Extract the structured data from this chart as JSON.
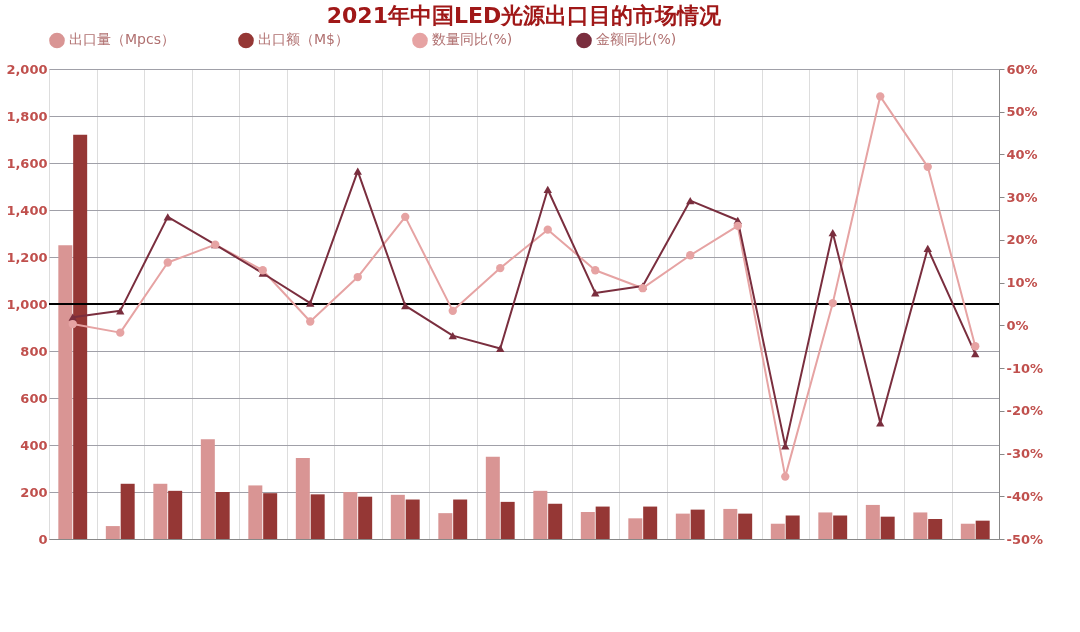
{
  "chart_data": {
    "type": "bar",
    "title": "2021年中国LED光源出口目的市场情况",
    "categories": [
      null,
      null,
      null,
      null,
      null,
      null,
      null,
      null,
      null,
      null,
      null,
      null,
      null,
      null,
      null,
      null,
      null,
      null,
      null,
      null
    ],
    "series": [
      {
        "name": "出口量（Mpcs）",
        "color": "#d99594",
        "values": [
          1250,
          55,
          235,
          425,
          228,
          345,
          200,
          188,
          110,
          350,
          205,
          115,
          88,
          108,
          128,
          65,
          113,
          145,
          113,
          65
        ]
      },
      {
        "name": "出口额（M$）",
        "color": "#953735",
        "values": [
          1720,
          235,
          205,
          200,
          195,
          190,
          180,
          168,
          168,
          158,
          150,
          138,
          138,
          125,
          108,
          100,
          100,
          95,
          85,
          78
        ]
      },
      {
        "name": "数量同比(%)",
        "type": "line",
        "axis": "y2",
        "marker": "circle",
        "color": "#e6a3a3",
        "values": [
          0.3,
          -1.7,
          14.7,
          18.9,
          12.9,
          0.9,
          11.3,
          25.4,
          3.4,
          13.4,
          22.4,
          12.9,
          8.7,
          16.4,
          23.3,
          -35.4,
          5.2,
          53.6,
          37.1,
          -4.9
        ]
      },
      {
        "name": "金额同比(%)",
        "type": "line",
        "axis": "y2",
        "marker": "triangle",
        "color": "#7a2e3e",
        "values": [
          1.9,
          3.4,
          25.4,
          18.9,
          12.2,
          5.2,
          36.1,
          4.6,
          -2.4,
          -5.4,
          31.8,
          7.6,
          9.2,
          29.2,
          24.6,
          -28.2,
          21.7,
          -22.8,
          18.0,
          -6.6
        ]
      }
    ],
    "ylim": [
      0,
      2000
    ],
    "yticks": [
      {
        "value": 0,
        "label": "0"
      },
      {
        "value": 200,
        "label": "200"
      },
      {
        "value": 400,
        "label": "400"
      },
      {
        "value": 600,
        "label": "600"
      },
      {
        "value": 800,
        "label": "800"
      },
      {
        "value": 1000,
        "label": "1,000"
      },
      {
        "value": 1200,
        "label": "1,200"
      },
      {
        "value": 1400,
        "label": "1,400"
      },
      {
        "value": 1600,
        "label": "1,600"
      },
      {
        "value": 1800,
        "label": "1,800"
      },
      {
        "value": 2000,
        "label": "2,000"
      }
    ],
    "y2lim": [
      -50,
      60
    ],
    "y2ticks": [
      {
        "value": -50,
        "label": "-50%"
      },
      {
        "value": -40,
        "label": "-40%"
      },
      {
        "value": -30,
        "label": "-30%"
      },
      {
        "value": -20,
        "label": "-20%"
      },
      {
        "value": -10,
        "label": "-10%"
      },
      {
        "value": 0,
        "label": "0%"
      },
      {
        "value": 10,
        "label": "10%"
      },
      {
        "value": 20,
        "label": "20%"
      },
      {
        "value": 30,
        "label": "30%"
      },
      {
        "value": 40,
        "label": "40%"
      },
      {
        "value": 50,
        "label": "50%"
      },
      {
        "value": 60,
        "label": "60%"
      }
    ],
    "ref_lines": [
      {
        "axis": "y",
        "value": 1000,
        "color": "#000000"
      }
    ],
    "grid": true,
    "legend": "top",
    "tick_labels": "y"
  }
}
